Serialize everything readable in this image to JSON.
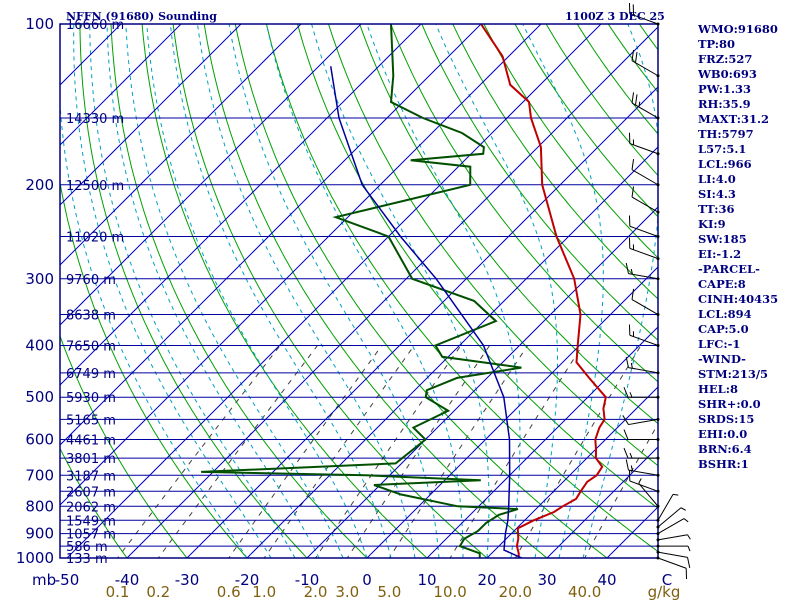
{
  "header": {
    "station": "NFFN (91680) Sounding",
    "time": "1100Z  3 DEC 25"
  },
  "indices": [
    "WMO:91680",
    "TP:80",
    "FRZ:527",
    "WB0:693",
    "PW:1.33",
    "RH:35.9",
    "MAXT:31.2",
    "TH:5797",
    "L57:5.1",
    "LCL:966",
    "LI:4.0",
    "SI:4.3",
    "TT:36",
    "KI:9",
    "SW:185",
    "EI:-1.2",
    "-PARCEL-",
    "CAPE:8",
    "CINH:40435",
    "LCL:894",
    "CAP:5.0",
    "LFC:-1",
    "-WIND-",
    "STM:213/5",
    "HEL:8",
    "SHR+:0.0",
    "SRDS:15",
    "EHI:0.0",
    "BRN:6.4",
    "BSHR:1"
  ],
  "colors": {
    "frame": "#000080",
    "isobar": "#0000a0",
    "isotherm": "#0000c0",
    "dry_adiabat": "#00a000",
    "moist_adiabat": "#00a0c0",
    "mixing_ratio": "#404040",
    "temperature": "#c00000",
    "dewpoint": "#005000",
    "parcel": "#0000a0",
    "wind": "#000000",
    "wlabel": "#806010"
  },
  "chart_data": {
    "type": "line",
    "title": "NFFN (91680) Sounding",
    "ylabel": "mb",
    "xlabel": "C",
    "y_scale": "log",
    "ylim": [
      1000,
      100
    ],
    "xlim": [
      -50,
      50
    ],
    "pressure_labels": [
      "100",
      "200",
      "300",
      "400",
      "500",
      "600",
      "700",
      "800",
      "900",
      "1000"
    ],
    "pressure_ticks": [
      100,
      200,
      300,
      400,
      500,
      600,
      700,
      800,
      900,
      1000
    ],
    "height_labels": [
      {
        "p": 100,
        "text": "16660 m"
      },
      {
        "p": 150,
        "text": "14330 m"
      },
      {
        "p": 200,
        "text": "12500 m"
      },
      {
        "p": 250,
        "text": "11020 m"
      },
      {
        "p": 300,
        "text": "9760 m"
      },
      {
        "p": 350,
        "text": "8638 m"
      },
      {
        "p": 400,
        "text": "7650 m"
      },
      {
        "p": 450,
        "text": "6749 m"
      },
      {
        "p": 500,
        "text": "5930 m"
      },
      {
        "p": 550,
        "text": "5165 m"
      },
      {
        "p": 600,
        "text": "4461 m"
      },
      {
        "p": 650,
        "text": "3801 m"
      },
      {
        "p": 700,
        "text": "3187 m"
      },
      {
        "p": 750,
        "text": "2607 m"
      },
      {
        "p": 800,
        "text": "2062 m"
      },
      {
        "p": 850,
        "text": "1549 m"
      },
      {
        "p": 900,
        "text": "1057 m"
      },
      {
        "p": 950,
        "text": "586 m"
      },
      {
        "p": 1000,
        "text": "133 m"
      }
    ],
    "temp_axis_labels": [
      "-50",
      "-40",
      "-30",
      "-20",
      "-10",
      "0",
      "10",
      "20",
      "30",
      "40",
      "C"
    ],
    "temp_axis_ticks": [
      -50,
      -40,
      -30,
      -20,
      -10,
      0,
      10,
      20,
      30,
      40,
      50
    ],
    "mixing_ratio_labels": [
      "0.1",
      "0.2",
      "0.6",
      "1.0",
      "2.0",
      "3.0",
      "5.0",
      "10.0",
      "20.0",
      "40.0",
      "g/kg"
    ],
    "mixing_ratio_values": [
      0.1,
      0.2,
      0.6,
      1.0,
      2.0,
      3.0,
      5.0,
      10.0,
      20.0,
      40.0
    ],
    "series": [
      {
        "name": "Temperature",
        "values": [
          {
            "p": 1005,
            "t": 25.5
          },
          {
            "p": 980,
            "t": 24.5
          },
          {
            "p": 950,
            "t": 23
          },
          {
            "p": 920,
            "t": 22
          },
          {
            "p": 880,
            "t": 20.2
          },
          {
            "p": 850,
            "t": 21.5
          },
          {
            "p": 820,
            "t": 23.5
          },
          {
            "p": 800,
            "t": 24
          },
          {
            "p": 775,
            "t": 25
          },
          {
            "p": 750,
            "t": 24.5
          },
          {
            "p": 720,
            "t": 24
          },
          {
            "p": 700,
            "t": 24.5
          },
          {
            "p": 675,
            "t": 24
          },
          {
            "p": 650,
            "t": 21.5
          },
          {
            "p": 625,
            "t": 20
          },
          {
            "p": 600,
            "t": 18.3
          },
          {
            "p": 570,
            "t": 17
          },
          {
            "p": 550,
            "t": 16.5
          },
          {
            "p": 525,
            "t": 14.5
          },
          {
            "p": 500,
            "t": 13
          },
          {
            "p": 460,
            "t": 7
          },
          {
            "p": 430,
            "t": 2.3
          },
          {
            "p": 400,
            "t": -0.3
          },
          {
            "p": 350,
            "t": -5
          },
          {
            "p": 300,
            "t": -12
          },
          {
            "p": 250,
            "t": -22
          },
          {
            "p": 200,
            "t": -33
          },
          {
            "p": 170,
            "t": -39.5
          },
          {
            "p": 150,
            "t": -46
          },
          {
            "p": 140,
            "t": -49
          },
          {
            "p": 130,
            "t": -55
          },
          {
            "p": 115,
            "t": -61
          },
          {
            "p": 100,
            "t": -70
          }
        ]
      },
      {
        "name": "Dewpoint",
        "values": [
          {
            "p": 1005,
            "t": 19
          },
          {
            "p": 980,
            "t": 18
          },
          {
            "p": 950,
            "t": 13.5
          },
          {
            "p": 920,
            "t": 13
          },
          {
            "p": 890,
            "t": 14
          },
          {
            "p": 860,
            "t": 14
          },
          {
            "p": 830,
            "t": 14.8
          },
          {
            "p": 810,
            "t": 17
          },
          {
            "p": 800,
            "t": 6.5
          },
          {
            "p": 760,
            "t": -5
          },
          {
            "p": 730,
            "t": -11
          },
          {
            "p": 715,
            "t": 6
          },
          {
            "p": 700,
            "t": -14
          },
          {
            "p": 690,
            "t": -42
          },
          {
            "p": 665,
            "t": -11
          },
          {
            "p": 600,
            "t": -10
          },
          {
            "p": 570,
            "t": -14
          },
          {
            "p": 530,
            "t": -11
          },
          {
            "p": 500,
            "t": -17
          },
          {
            "p": 485,
            "t": -18
          },
          {
            "p": 460,
            "t": -15
          },
          {
            "p": 440,
            "t": -6
          },
          {
            "p": 420,
            "t": -21
          },
          {
            "p": 400,
            "t": -24
          },
          {
            "p": 360,
            "t": -18
          },
          {
            "p": 330,
            "t": -25
          },
          {
            "p": 300,
            "t": -39
          },
          {
            "p": 250,
            "t": -50
          },
          {
            "p": 230,
            "t": -62
          },
          {
            "p": 200,
            "t": -45
          },
          {
            "p": 185,
            "t": -48
          },
          {
            "p": 180,
            "t": -59
          },
          {
            "p": 175,
            "t": -48
          },
          {
            "p": 170,
            "t": -49
          },
          {
            "p": 160,
            "t": -55
          },
          {
            "p": 150,
            "t": -64
          },
          {
            "p": 140,
            "t": -72
          },
          {
            "p": 125,
            "t": -76
          },
          {
            "p": 100,
            "t": -85
          }
        ]
      },
      {
        "name": "Parcel",
        "values": [
          {
            "p": 1000,
            "t": 25.8
          },
          {
            "p": 966,
            "t": 21.5
          },
          {
            "p": 900,
            "t": 19
          },
          {
            "p": 850,
            "t": 17.2
          },
          {
            "p": 800,
            "t": 15
          },
          {
            "p": 700,
            "t": 10
          },
          {
            "p": 600,
            "t": 4
          },
          {
            "p": 500,
            "t": -4
          },
          {
            "p": 400,
            "t": -16
          },
          {
            "p": 300,
            "t": -35
          },
          {
            "p": 250,
            "t": -48
          },
          {
            "p": 200,
            "t": -63
          },
          {
            "p": 150,
            "t": -78
          },
          {
            "p": 120,
            "t": -88
          }
        ]
      }
    ],
    "winds": [
      {
        "p": 1000,
        "dir": 110,
        "spd": 10
      },
      {
        "p": 975,
        "dir": 100,
        "spd": 10
      },
      {
        "p": 950,
        "dir": 90,
        "spd": 5
      },
      {
        "p": 925,
        "dir": 80,
        "spd": 5
      },
      {
        "p": 900,
        "dir": 60,
        "spd": 5
      },
      {
        "p": 875,
        "dir": 50,
        "spd": 5
      },
      {
        "p": 850,
        "dir": 30,
        "spd": 5
      },
      {
        "p": 800,
        "dir": 320,
        "spd": 5
      },
      {
        "p": 750,
        "dir": 290,
        "spd": 10
      },
      {
        "p": 700,
        "dir": 280,
        "spd": 15
      },
      {
        "p": 650,
        "dir": 270,
        "spd": 15
      },
      {
        "p": 600,
        "dir": 270,
        "spd": 10
      },
      {
        "p": 550,
        "dir": 260,
        "spd": 10
      },
      {
        "p": 500,
        "dir": 270,
        "spd": 15
      },
      {
        "p": 450,
        "dir": 280,
        "spd": 15
      },
      {
        "p": 400,
        "dir": 290,
        "spd": 15
      },
      {
        "p": 350,
        "dir": 300,
        "spd": 10
      },
      {
        "p": 300,
        "dir": 280,
        "spd": 15
      },
      {
        "p": 275,
        "dir": 290,
        "spd": 15
      },
      {
        "p": 250,
        "dir": 290,
        "spd": 10
      },
      {
        "p": 225,
        "dir": 300,
        "spd": 10
      },
      {
        "p": 200,
        "dir": 300,
        "spd": 10
      },
      {
        "p": 175,
        "dir": 290,
        "spd": 15
      },
      {
        "p": 150,
        "dir": 300,
        "spd": 25
      },
      {
        "p": 125,
        "dir": 300,
        "spd": 20
      },
      {
        "p": 100,
        "dir": 290,
        "spd": 20
      }
    ]
  }
}
